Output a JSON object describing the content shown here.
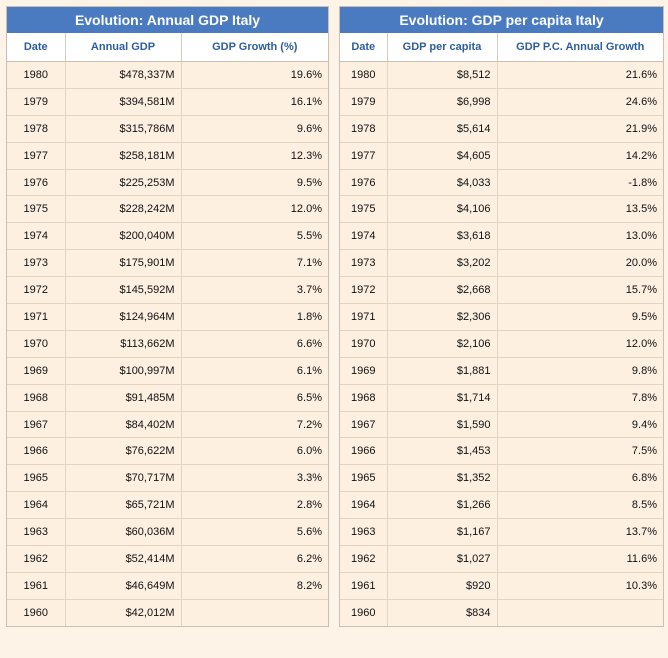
{
  "gdp_table": {
    "title": "Evolution: Annual GDP Italy",
    "headers": [
      "Date",
      "Annual GDP",
      "GDP Growth (%)"
    ],
    "rows": [
      [
        "1980",
        "$478,337M",
        "19.6%"
      ],
      [
        "1979",
        "$394,581M",
        "16.1%"
      ],
      [
        "1978",
        "$315,786M",
        "9.6%"
      ],
      [
        "1977",
        "$258,181M",
        "12.3%"
      ],
      [
        "1976",
        "$225,253M",
        "9.5%"
      ],
      [
        "1975",
        "$228,242M",
        "12.0%"
      ],
      [
        "1974",
        "$200,040M",
        "5.5%"
      ],
      [
        "1973",
        "$175,901M",
        "7.1%"
      ],
      [
        "1972",
        "$145,592M",
        "3.7%"
      ],
      [
        "1971",
        "$124,964M",
        "1.8%"
      ],
      [
        "1970",
        "$113,662M",
        "6.6%"
      ],
      [
        "1969",
        "$100,997M",
        "6.1%"
      ],
      [
        "1968",
        "$91,485M",
        "6.5%"
      ],
      [
        "1967",
        "$84,402M",
        "7.2%"
      ],
      [
        "1966",
        "$76,622M",
        "6.0%"
      ],
      [
        "1965",
        "$70,717M",
        "3.3%"
      ],
      [
        "1964",
        "$65,721M",
        "2.8%"
      ],
      [
        "1963",
        "$60,036M",
        "5.6%"
      ],
      [
        "1962",
        "$52,414M",
        "6.2%"
      ],
      [
        "1961",
        "$46,649M",
        "8.2%"
      ],
      [
        "1960",
        "$42,012M",
        ""
      ]
    ]
  },
  "gdp_per_capita_table": {
    "title": "Evolution: GDP per capita Italy",
    "headers": [
      "Date",
      "GDP per capita",
      "GDP P.C. Annual Growth"
    ],
    "rows": [
      [
        "1980",
        "$8,512",
        "21.6%"
      ],
      [
        "1979",
        "$6,998",
        "24.6%"
      ],
      [
        "1978",
        "$5,614",
        "21.9%"
      ],
      [
        "1977",
        "$4,605",
        "14.2%"
      ],
      [
        "1976",
        "$4,033",
        "-1.8%"
      ],
      [
        "1975",
        "$4,106",
        "13.5%"
      ],
      [
        "1974",
        "$3,618",
        "13.0%"
      ],
      [
        "1973",
        "$3,202",
        "20.0%"
      ],
      [
        "1972",
        "$2,668",
        "15.7%"
      ],
      [
        "1971",
        "$2,306",
        "9.5%"
      ],
      [
        "1970",
        "$2,106",
        "12.0%"
      ],
      [
        "1969",
        "$1,881",
        "9.8%"
      ],
      [
        "1968",
        "$1,714",
        "7.8%"
      ],
      [
        "1967",
        "$1,590",
        "9.4%"
      ],
      [
        "1966",
        "$1,453",
        "7.5%"
      ],
      [
        "1965",
        "$1,352",
        "6.8%"
      ],
      [
        "1964",
        "$1,266",
        "8.5%"
      ],
      [
        "1963",
        "$1,167",
        "13.7%"
      ],
      [
        "1962",
        "$1,027",
        "11.6%"
      ],
      [
        "1961",
        "$920",
        "10.3%"
      ],
      [
        "1960",
        "$834",
        ""
      ]
    ]
  },
  "colors": {
    "header_blue": "#4a7bc0",
    "header_text_blue": "#2c5e9e",
    "row_background": "#fdf0e1"
  }
}
